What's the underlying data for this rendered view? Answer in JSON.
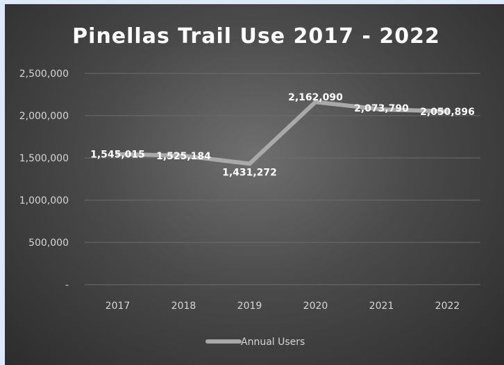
{
  "chart_data": {
    "type": "line",
    "title": "Pinellas Trail Use 2017 - 2022",
    "categories": [
      "2017",
      "2018",
      "2019",
      "2020",
      "2021",
      "2022"
    ],
    "series": [
      {
        "name": "Annual Users",
        "values": [
          1545015,
          1525184,
          1431272,
          2162090,
          2073790,
          2050896
        ],
        "labels": [
          "1,545,015",
          "1,525,184",
          "1,431,272",
          "2,162,090",
          "2,073,790",
          "2,050,896"
        ],
        "color": "#a9a9a9"
      }
    ],
    "yticks": [
      0,
      500000,
      1000000,
      1500000,
      2000000,
      2500000
    ],
    "ytick_labels": [
      "-",
      "500,000",
      "1,000,000",
      "1,500,000",
      "2,000,000",
      "2,500,000"
    ],
    "ylim": [
      0,
      2500000
    ],
    "grid": true,
    "legend_position": "bottom"
  }
}
